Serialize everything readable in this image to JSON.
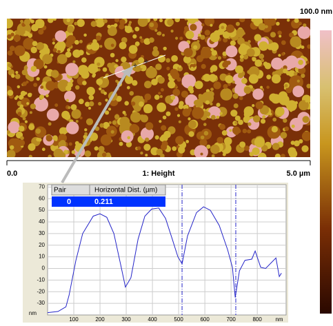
{
  "image": {
    "scale_max": "100.0 nm",
    "x_start": "0.0",
    "channel": "1: Height",
    "x_end": "5.0 µm"
  },
  "table": {
    "headers": [
      "Pair",
      "Horizontal Dist. (µm)"
    ],
    "rows": [
      [
        "0",
        "0.211"
      ]
    ]
  },
  "chart_data": {
    "type": "line",
    "x": [
      0,
      40,
      70,
      82,
      108,
      134,
      174,
      200,
      226,
      253,
      279,
      297,
      318,
      345,
      371,
      397,
      424,
      450,
      476,
      497,
      513,
      534,
      568,
      595,
      621,
      655,
      687,
      705,
      716,
      732,
      753,
      779,
      792,
      813,
      832,
      871,
      884,
      892
    ],
    "series": [
      {
        "color": "#2323c8",
        "values": [
          -38,
          -37,
          -33,
          -23,
          7,
          30,
          45,
          47,
          44,
          30,
          3,
          -16,
          -8,
          25,
          45,
          51,
          52,
          43,
          25,
          10,
          4,
          28,
          48,
          53,
          50,
          37,
          16,
          1,
          -25,
          -2,
          7,
          8,
          15,
          1,
          0,
          9,
          -7,
          -4
        ]
      }
    ],
    "cursors": [
      513,
      718
    ],
    "xlim": [
      0,
      910
    ],
    "ylim": [
      -40,
      72
    ],
    "xticks": [
      100,
      200,
      300,
      400,
      500,
      600,
      700,
      800
    ],
    "yticks": [
      70,
      60,
      50,
      40,
      30,
      20,
      10,
      0,
      -10,
      -20,
      -30
    ],
    "x_unit": "nm",
    "y_unit": "nm",
    "grid": true
  }
}
